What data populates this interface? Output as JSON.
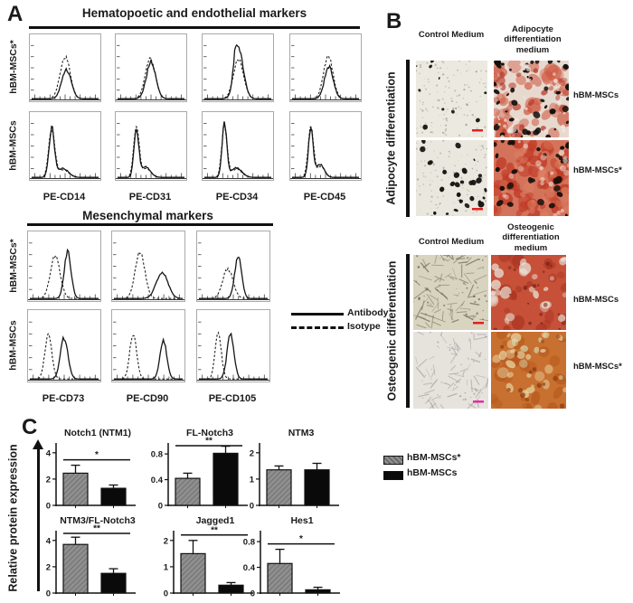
{
  "panelA": {
    "label": "A",
    "legend": {
      "solid_label": "Antibody",
      "dashed_label": "Isotype"
    },
    "section1": {
      "title": "Hematopoetic and endothelial markers",
      "row_labels": [
        "hBM-MSCs*",
        "hBM-MSCs"
      ],
      "col_labels": [
        "PE-CD14",
        "PE-CD31",
        "PE-CD34",
        "PE-CD45"
      ],
      "plots": [
        [
          {
            "solid": [
              [
                0.52,
                0.07,
                0.5
              ]
            ],
            "dashed": [
              [
                0.5,
                0.075,
                0.72
              ]
            ]
          },
          {
            "solid": [
              [
                0.5,
                0.07,
                0.62
              ]
            ],
            "dashed": [
              [
                0.49,
                0.075,
                0.68
              ]
            ]
          },
          {
            "solid": [
              [
                0.52,
                0.07,
                0.78
              ],
              [
                0.46,
                0.03,
                0.3
              ]
            ],
            "dashed": [
              [
                0.51,
                0.075,
                0.68
              ]
            ]
          },
          {
            "solid": [
              [
                0.55,
                0.065,
                0.55
              ]
            ],
            "dashed": [
              [
                0.54,
                0.07,
                0.72
              ]
            ]
          }
        ],
        [
          {
            "solid": [
              [
                0.3,
                0.04,
                0.82
              ],
              [
                0.47,
                0.08,
                0.15
              ]
            ],
            "dashed": [
              [
                0.3,
                0.045,
                0.8
              ],
              [
                0.47,
                0.08,
                0.13
              ]
            ]
          },
          {
            "solid": [
              [
                0.28,
                0.035,
                0.82
              ],
              [
                0.42,
                0.07,
                0.18
              ]
            ],
            "dashed": [
              [
                0.28,
                0.04,
                0.88
              ],
              [
                0.43,
                0.07,
                0.15
              ]
            ]
          },
          {
            "solid": [
              [
                0.3,
                0.035,
                0.92
              ],
              [
                0.48,
                0.08,
                0.16
              ]
            ],
            "dashed": [
              [
                0.3,
                0.04,
                0.86
              ],
              [
                0.48,
                0.08,
                0.14
              ]
            ]
          },
          {
            "solid": [
              [
                0.28,
                0.035,
                0.82
              ],
              [
                0.42,
                0.06,
                0.22
              ]
            ],
            "dashed": [
              [
                0.28,
                0.04,
                0.86
              ],
              [
                0.43,
                0.06,
                0.18
              ]
            ]
          }
        ]
      ]
    },
    "section2": {
      "title": "Mesenchymal markers",
      "row_labels": [
        "hBM-MSCs*",
        "hBM-MSCs"
      ],
      "col_labels": [
        "PE-CD73",
        "PE-CD90",
        "PE-CD105"
      ],
      "plots": [
        [
          {
            "solid": [
              [
                0.55,
                0.05,
                0.75
              ]
            ],
            "dashed": [
              [
                0.37,
                0.07,
                0.7
              ]
            ]
          },
          {
            "solid": [
              [
                0.7,
                0.085,
                0.42
              ]
            ],
            "dashed": [
              [
                0.38,
                0.07,
                0.76
              ]
            ]
          },
          {
            "solid": [
              [
                0.57,
                0.05,
                0.68
              ]
            ],
            "dashed": [
              [
                0.42,
                0.075,
                0.48
              ]
            ]
          }
        ],
        [
          {
            "solid": [
              [
                0.5,
                0.055,
                0.65
              ]
            ],
            "dashed": [
              [
                0.27,
                0.05,
                0.72
              ]
            ]
          },
          {
            "solid": [
              [
                0.72,
                0.05,
                0.6
              ]
            ],
            "dashed": [
              [
                0.28,
                0.05,
                0.72
              ]
            ]
          },
          {
            "solid": [
              [
                0.46,
                0.05,
                0.72
              ]
            ],
            "dashed": [
              [
                0.28,
                0.045,
                0.75
              ]
            ]
          }
        ]
      ]
    }
  },
  "panelB": {
    "label": "B",
    "sections": [
      {
        "side_label": "Adipocyte differentiation",
        "col_headers": [
          "Control Medium",
          "Adipocyte\ndifferentiation\nmedium"
        ],
        "row_labels": [
          "hBM-MSCs",
          "hBM-MSCs*"
        ]
      },
      {
        "side_label": "Osteogenic differentiation",
        "col_headers": [
          "Control Medium",
          "Osteogenic\ndifferentiation\nmedium"
        ],
        "row_labels": [
          "hBM-MSCs",
          "hBM-MSCs*"
        ]
      }
    ],
    "images": {
      "adipo_control_hbm": {
        "bg": "#ebe9e0",
        "scalebar": "#e02020",
        "layers": [
          {
            "kind": "dot",
            "n": 130,
            "r": [
              0.4,
              1.2
            ],
            "color": "#9c968a",
            "o": [
              0.35,
              0.8
            ]
          },
          {
            "kind": "blob",
            "n": 10,
            "r": [
              1.2,
              3.0
            ],
            "color": "#17120e",
            "o": [
              0.9,
              1
            ]
          }
        ]
      },
      "adipo_diff_hbm": {
        "bg": "#e8d9cf",
        "scalebar": "",
        "layers": [
          {
            "kind": "blob",
            "n": 50,
            "r": [
              3,
              9
            ],
            "color": "#cf5a43",
            "o": [
              0.35,
              0.75
            ]
          },
          {
            "kind": "blob",
            "n": 25,
            "r": [
              2,
              5
            ],
            "color": "#b03020",
            "o": [
              0.4,
              0.7
            ]
          },
          {
            "kind": "blob",
            "n": 42,
            "r": [
              1.2,
              4
            ],
            "color": "#140f0c",
            "o": [
              0.85,
              1
            ]
          },
          {
            "kind": "dot",
            "n": 30,
            "r": [
              1,
              2.5
            ],
            "color": "#f4ece6",
            "o": [
              0.5,
              0.8
            ]
          }
        ]
      },
      "adipo_control_hbm_star": {
        "bg": "#eae8de",
        "scalebar": "#e02020",
        "layers": [
          {
            "kind": "dot",
            "n": 110,
            "r": [
              0.4,
              1.1
            ],
            "color": "#a09a8c",
            "o": [
              0.35,
              0.8
            ]
          },
          {
            "kind": "blob",
            "n": 28,
            "r": [
              1.3,
              3.6
            ],
            "color": "#141210",
            "o": [
              0.9,
              1
            ]
          }
        ]
      },
      "adipo_diff_hbm_star": {
        "bg": "#d4735c",
        "scalebar": "",
        "layers": [
          {
            "kind": "blob",
            "n": 55,
            "r": [
              3,
              9
            ],
            "color": "#c03a26",
            "o": [
              0.4,
              0.8
            ]
          },
          {
            "kind": "blob",
            "n": 30,
            "r": [
              2,
              6
            ],
            "color": "#e08868",
            "o": [
              0.3,
              0.6
            ]
          },
          {
            "kind": "blob",
            "n": 28,
            "r": [
              1.5,
              4.5
            ],
            "color": "#1a100b",
            "o": [
              0.85,
              1
            ]
          },
          {
            "kind": "dot",
            "n": 22,
            "r": [
              1.5,
              3.5
            ],
            "color": "#f2e3d8",
            "o": [
              0.4,
              0.7
            ]
          }
        ]
      },
      "osteo_control_hbm": {
        "bg": "#d8d4bf",
        "scalebar": "#e02020",
        "layers": [
          {
            "kind": "streak",
            "n": 75,
            "len": [
              6,
              17
            ],
            "color": "#6f6c55",
            "o": [
              0.4,
              0.75
            ]
          },
          {
            "kind": "dot",
            "n": 45,
            "r": [
              0.5,
              1.3
            ],
            "color": "#55523e",
            "o": [
              0.4,
              0.7
            ]
          }
        ]
      },
      "osteo_diff_hbm": {
        "bg": "#c65138",
        "scalebar": "",
        "layers": [
          {
            "kind": "blob",
            "n": 22,
            "r": [
              3,
              8
            ],
            "color": "#a93322",
            "o": [
              0.4,
              0.7
            ]
          },
          {
            "kind": "blob",
            "n": 26,
            "r": [
              2.5,
              7
            ],
            "color": "#e8e4da",
            "o": [
              0.35,
              0.8
            ]
          },
          {
            "kind": "dot",
            "n": 18,
            "r": [
              1,
              2.5
            ],
            "color": "#7c2416",
            "o": [
              0.5,
              0.8
            ]
          }
        ]
      },
      "osteo_control_hbm_star": {
        "bg": "#e6e3dd",
        "scalebar": "#e82ba8",
        "layers": [
          {
            "kind": "streak",
            "n": 62,
            "len": [
              6,
              16
            ],
            "color": "#9b8d93",
            "o": [
              0.35,
              0.6
            ]
          },
          {
            "kind": "dot",
            "n": 35,
            "r": [
              0.5,
              1.2
            ],
            "color": "#8d8288",
            "o": [
              0.4,
              0.6
            ]
          }
        ]
      },
      "osteo_diff_hbm_star": {
        "bg": "#c8702f",
        "scalebar": "",
        "layers": [
          {
            "kind": "blob",
            "n": 26,
            "r": [
              3,
              8
            ],
            "color": "#b5561c",
            "o": [
              0.4,
              0.7
            ]
          },
          {
            "kind": "blob",
            "n": 22,
            "r": [
              2.5,
              6
            ],
            "color": "#ead9a8",
            "o": [
              0.4,
              0.75
            ]
          },
          {
            "kind": "blob",
            "n": 10,
            "r": [
              2,
              5
            ],
            "color": "#d8ecc8",
            "o": [
              0.4,
              0.6
            ]
          },
          {
            "kind": "dot",
            "n": 14,
            "r": [
              1.5,
              3
            ],
            "color": "#8a3c12",
            "o": [
              0.5,
              0.8
            ]
          }
        ]
      }
    }
  },
  "panelC": {
    "label": "C",
    "ylabel": "Relative protein expression",
    "legend": [
      {
        "label": "hBM-MSCs*",
        "style": "hatched-gray"
      },
      {
        "label": "hBM-MSCs",
        "style": "solid-black"
      }
    ]
  },
  "chart_data": [
    {
      "type": "bar",
      "title": "Notch1 (NTM1)",
      "categories": [
        "hBM-MSCs*",
        "hBM-MSCs"
      ],
      "values": [
        2.45,
        1.3
      ],
      "errors": [
        0.6,
        0.25
      ],
      "yticks": [
        0,
        2,
        4
      ],
      "ylim": [
        0,
        4.4
      ],
      "significance": "*",
      "ylabel": "Relative protein expression",
      "legend_position": "right"
    },
    {
      "type": "bar",
      "title": "FL-Notch3",
      "categories": [
        "hBM-MSCs*",
        "hBM-MSCs"
      ],
      "values": [
        0.42,
        0.81
      ],
      "errors": [
        0.08,
        0.11
      ],
      "yticks": [
        0,
        0.4,
        0.8
      ],
      "ylim": [
        0,
        0.9
      ],
      "significance": "**"
    },
    {
      "type": "bar",
      "title": "NTM3",
      "categories": [
        "hBM-MSCs*",
        "hBM-MSCs"
      ],
      "values": [
        1.35,
        1.35
      ],
      "errors": [
        0.15,
        0.25
      ],
      "yticks": [
        0,
        1,
        2
      ],
      "ylim": [
        0,
        2.2
      ],
      "significance": ""
    },
    {
      "type": "bar",
      "title": "NTM3/FL-Notch3",
      "categories": [
        "hBM-MSCs*",
        "hBM-MSCs"
      ],
      "values": [
        3.7,
        1.5
      ],
      "errors": [
        0.55,
        0.35
      ],
      "yticks": [
        0,
        2,
        4
      ],
      "ylim": [
        0,
        4.4
      ],
      "significance": "**"
    },
    {
      "type": "bar",
      "title": "Jagged1",
      "categories": [
        "hBM-MSCs*",
        "hBM-MSCs"
      ],
      "values": [
        1.5,
        0.3
      ],
      "errors": [
        0.5,
        0.1
      ],
      "yticks": [
        0,
        1,
        2
      ],
      "ylim": [
        0,
        2.2
      ],
      "significance": "**"
    },
    {
      "type": "bar",
      "title": "Hes1",
      "categories": [
        "hBM-MSCs*",
        "hBM-MSCs"
      ],
      "values": [
        0.46,
        0.05
      ],
      "errors": [
        0.22,
        0.04
      ],
      "yticks": [
        0,
        0.4,
        0.8
      ],
      "ylim": [
        0,
        0.9
      ],
      "significance": "*"
    }
  ]
}
